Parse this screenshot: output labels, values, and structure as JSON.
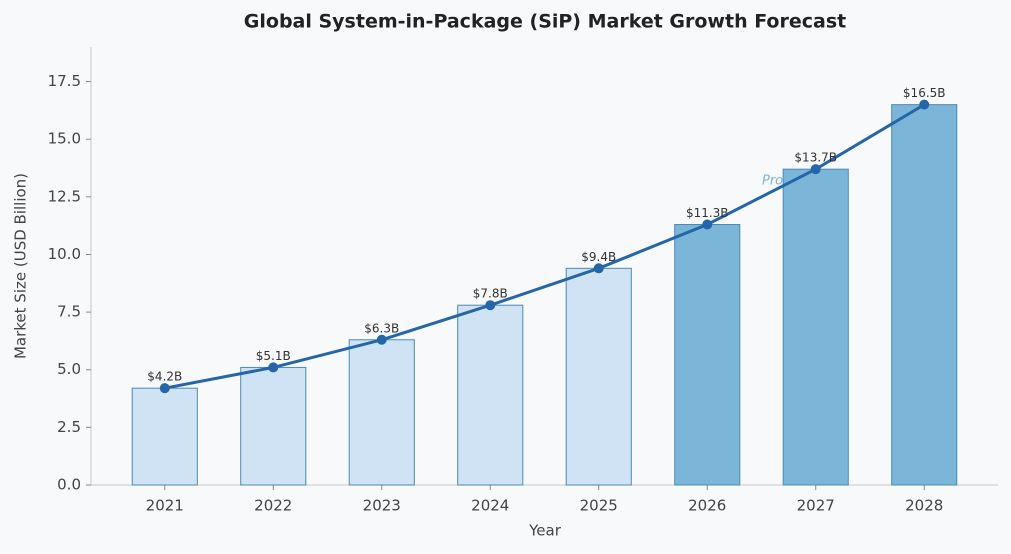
{
  "chart_data": {
    "type": "bar",
    "title": "Global System-in-Package (SiP) Market Growth Forecast",
    "x_label": "Year",
    "y_label": "Market Size (USD Billion)",
    "categories": [
      "2021",
      "2022",
      "2023",
      "2024",
      "2025",
      "2026",
      "2027",
      "2028"
    ],
    "values": [
      4.2,
      5.1,
      6.3,
      7.8,
      9.4,
      11.3,
      13.7,
      16.5
    ],
    "value_labels": [
      "$4.2B",
      "$5.1B",
      "$6.3B",
      "$7.8B",
      "$9.4B",
      "$11.3B",
      "$13.7B",
      "$16.5B"
    ],
    "bar_colors": [
      "#d0e3f5",
      "#d0e3f5",
      "#d0e3f5",
      "#d0e3f5",
      "#d0e3f5",
      "#7bb6d9",
      "#7bb6d9",
      "#7bb6d9"
    ],
    "line_color": "#2566a8",
    "annotation": "Projected",
    "ylim": [
      0,
      19
    ],
    "yticks": [
      {
        "value": 0,
        "label": "0.0"
      },
      2.5,
      {
        "value": 5,
        "label": "5.0"
      },
      7.5,
      {
        "value": 10,
        "label": "10.0"
      },
      12.5,
      {
        "value": 15,
        "label": "15.0"
      },
      17.5
    ]
  }
}
